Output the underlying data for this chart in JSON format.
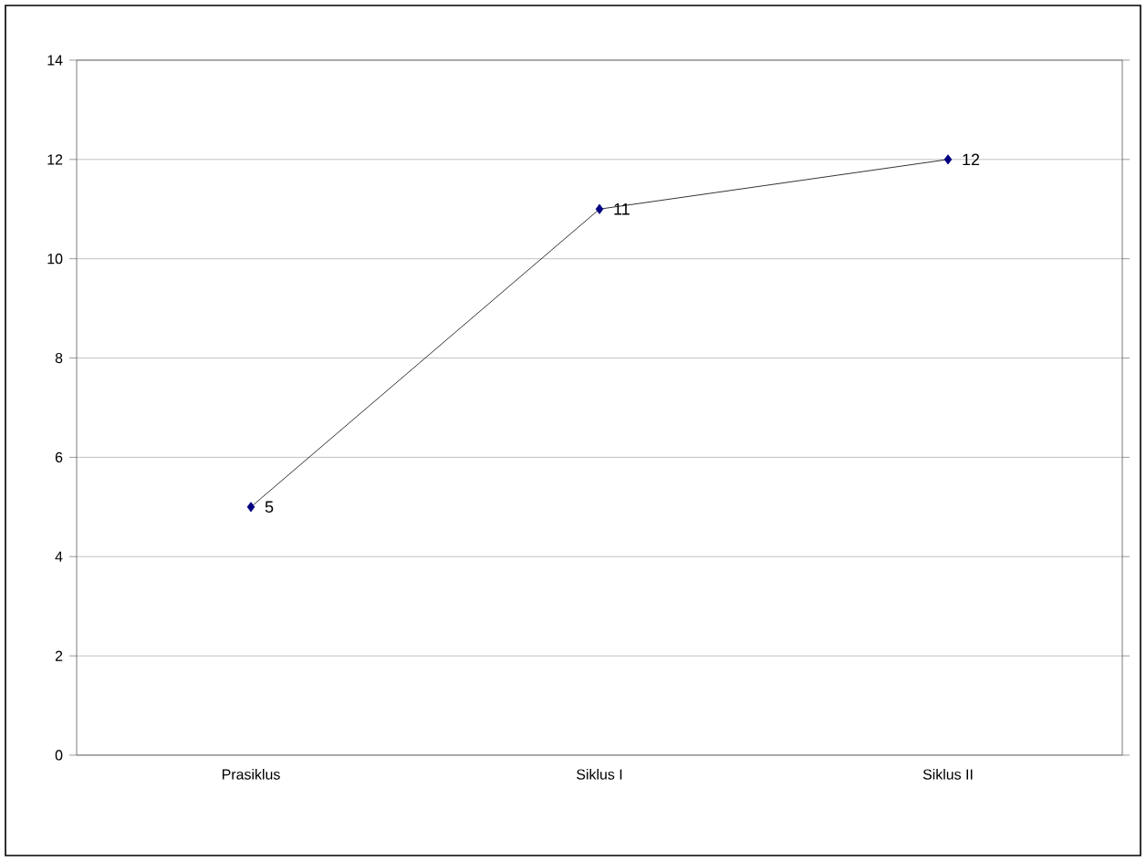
{
  "chart_data": {
    "type": "line",
    "categories": [
      "Prasiklus",
      "Siklus I",
      "Siklus II"
    ],
    "series": [
      {
        "color": "#000080",
        "values": [
          5,
          11,
          12
        ]
      }
    ],
    "ylim": [
      0,
      14
    ],
    "yticks": [
      0,
      2,
      4,
      6,
      8,
      10,
      12,
      14
    ],
    "grid": "y",
    "marker": "diamond",
    "data_labels": true
  }
}
